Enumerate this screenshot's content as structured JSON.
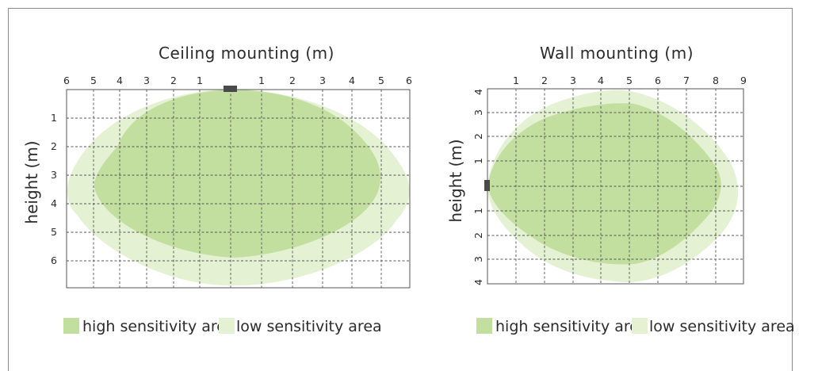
{
  "colors": {
    "high": "#c3df9f",
    "low": "#e5f1d3",
    "sensor": "#4a4a4a",
    "grid": "#555555"
  },
  "ceiling": {
    "title": "Ceiling mounting (m)",
    "ylabel": "height (m)",
    "x_ticks": [
      "6",
      "5",
      "4",
      "3",
      "2",
      "1",
      "1",
      "2",
      "3",
      "4",
      "5",
      "6"
    ],
    "y_ticks": [
      "1",
      "2",
      "3",
      "4",
      "5",
      "6"
    ]
  },
  "wall": {
    "title": "Wall mounting (m)",
    "ylabel": "height (m)",
    "x_ticks": [
      "1",
      "2",
      "3",
      "4",
      "5",
      "6",
      "7",
      "8",
      "9"
    ],
    "y_ticks": [
      "4",
      "3",
      "2",
      "1",
      "1",
      "2",
      "3",
      "4"
    ]
  },
  "legend": {
    "high": "high sensitivity area",
    "low": "low sensitivity area"
  }
}
